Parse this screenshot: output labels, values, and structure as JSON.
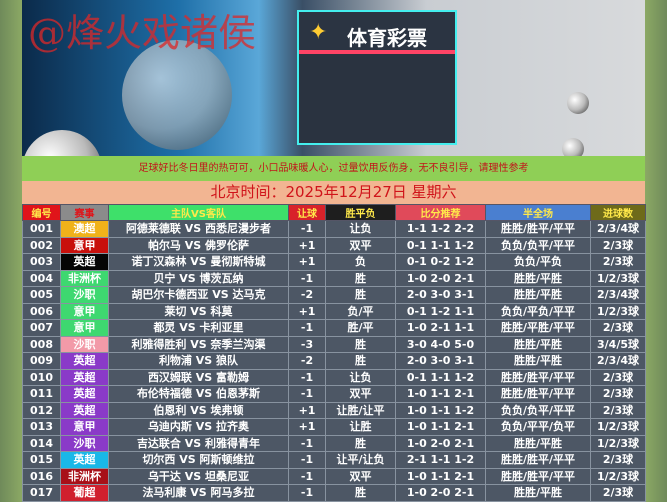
{
  "banner": {
    "watermark": "@烽火戏诸侯",
    "store_sign": "体育彩票"
  },
  "notice": "足球好比冬日里的热可可，小口品味暖人心，过量饮用反伤身，无不良引导，请理性参考",
  "date": "北京时间：2025年12月27日  星期六",
  "headers": [
    {
      "label": "编号",
      "bg": "#e0141a",
      "color": "#ffe94a"
    },
    {
      "label": "赛事",
      "bg": "#8b8b8b",
      "color": "#e0141a"
    },
    {
      "label": "主队VS客队",
      "bg": "#3ee06a",
      "color": "#ffe94a"
    },
    {
      "label": "让球",
      "bg": "#d8222a",
      "color": "#ffe94a"
    },
    {
      "label": "胜平负",
      "bg": "#1e1e1e",
      "color": "#ffe94a"
    },
    {
      "label": "比分推荐",
      "bg": "#e04a5a",
      "color": "#ffe94a"
    },
    {
      "label": "半全场",
      "bg": "#4a7fd0",
      "color": "#ffe94a"
    },
    {
      "label": "进球数",
      "bg": "#6e6a1a",
      "color": "#ffe94a"
    }
  ],
  "rows": [
    {
      "no": "001",
      "league": "澳超",
      "league_bg": "#f0b21a",
      "match": "阿德莱德联 VS 西悉尼漫步者",
      "handicap": "-1",
      "result": "让负",
      "scores": "1-1 1-2 2-2",
      "half_full": "胜胜/胜平/平平",
      "goals": "2/3/4球"
    },
    {
      "no": "002",
      "league": "意甲",
      "league_bg": "#c8100c",
      "match": "帕尔马 VS 佛罗伦萨",
      "handicap": "+1",
      "result": "双平",
      "scores": "0-1 1-1 1-2",
      "half_full": "负负/负平/平平",
      "goals": "2/3球"
    },
    {
      "no": "003",
      "league": "英超",
      "league_bg": "#050505",
      "match": "诺丁汉森林 VS 曼彻斯特城",
      "handicap": "+1",
      "result": "负",
      "scores": "0-1 0-2 1-2",
      "half_full": "负负/平负",
      "goals": "2/3球"
    },
    {
      "no": "004",
      "league": "非洲杯",
      "league_bg": "#3ed870",
      "match": "贝宁 VS 博茨瓦纳",
      "handicap": "-1",
      "result": "胜",
      "scores": "1-0 2-0 2-1",
      "half_full": "胜胜/平胜",
      "goals": "1/2/3球"
    },
    {
      "no": "005",
      "league": "沙职",
      "league_bg": "#3ed870",
      "match": "胡巴尔卡德西亚 VS 达马克",
      "handicap": "-2",
      "result": "胜",
      "scores": "2-0 3-0 3-1",
      "half_full": "胜胜/平胜",
      "goals": "2/3/4球"
    },
    {
      "no": "006",
      "league": "意甲",
      "league_bg": "#3ed870",
      "match": "莱切 VS 科莫",
      "handicap": "+1",
      "result": "负/平",
      "scores": "0-1 1-2 1-1",
      "half_full": "负负/平负/平平",
      "goals": "1/2/3球"
    },
    {
      "no": "007",
      "league": "意甲",
      "league_bg": "#3ed870",
      "match": "都灵 VS 卡利亚里",
      "handicap": "-1",
      "result": "胜/平",
      "scores": "1-0 2-1 1-1",
      "half_full": "胜胜/平胜/平平",
      "goals": "2/3球"
    },
    {
      "no": "008",
      "league": "沙职",
      "league_bg": "#f29aa8",
      "match": "利雅得胜利 VS 奈季兰沟渠",
      "handicap": "-3",
      "result": "胜",
      "scores": "3-0 4-0 5-0",
      "half_full": "胜胜/平胜",
      "goals": "3/4/5球"
    },
    {
      "no": "009",
      "league": "英超",
      "league_bg": "#8a3ac8",
      "match": "利物浦 VS 狼队",
      "handicap": "-2",
      "result": "胜",
      "scores": "2-0 3-0 3-1",
      "half_full": "胜胜/平胜",
      "goals": "2/3/4球"
    },
    {
      "no": "010",
      "league": "英超",
      "league_bg": "#8a3ac8",
      "match": "西汉姆联 VS 富勒姆",
      "handicap": "-1",
      "result": "让负",
      "scores": "0-1 1-1 1-2",
      "half_full": "胜胜/胜平/平平",
      "goals": "2/3球"
    },
    {
      "no": "011",
      "league": "英超",
      "league_bg": "#8a3ac8",
      "match": "布伦特福德 VS 伯恩茅斯",
      "handicap": "-1",
      "result": "双平",
      "scores": "1-0 1-1 2-1",
      "half_full": "胜胜/胜平/平平",
      "goals": "2/3球"
    },
    {
      "no": "012",
      "league": "英超",
      "league_bg": "#8a3ac8",
      "match": "伯恩利 VS 埃弗顿",
      "handicap": "+1",
      "result": "让胜/让平",
      "scores": "1-0 1-1 1-2",
      "half_full": "负负/负平/平平",
      "goals": "2/3球"
    },
    {
      "no": "013",
      "league": "意甲",
      "league_bg": "#8a3ac8",
      "match": "乌迪内斯 VS 拉齐奥",
      "handicap": "+1",
      "result": "让胜",
      "scores": "1-0 1-1 2-1",
      "half_full": "负负/平平/负平",
      "goals": "1/2/3球"
    },
    {
      "no": "014",
      "league": "沙职",
      "league_bg": "#8a3ac8",
      "match": "吉达联合 VS 利雅得青年",
      "handicap": "-1",
      "result": "胜",
      "scores": "1-0 2-0 2-1",
      "half_full": "胜胜/平胜",
      "goals": "1/2/3球"
    },
    {
      "no": "015",
      "league": "英超",
      "league_bg": "#1ab8e8",
      "match": "切尔西 VS 阿斯顿维拉",
      "handicap": "-1",
      "result": "让平/让负",
      "scores": "2-1 1-1 1-2",
      "half_full": "胜胜/胜平/平平",
      "goals": "2/3球"
    },
    {
      "no": "016",
      "league": "非洲杯",
      "league_bg": "#a81018",
      "match": "乌干达 VS 坦桑尼亚",
      "handicap": "-1",
      "result": "双平",
      "scores": "1-0 1-1 2-1",
      "half_full": "胜胜/胜平/平平",
      "goals": "1/2/3球"
    },
    {
      "no": "017",
      "league": "葡超",
      "league_bg": "#d0202e",
      "match": "法马利康 VS 阿马多拉",
      "handicap": "-1",
      "result": "胜",
      "scores": "1-0 2-0 2-1",
      "half_full": "胜胜/平胜",
      "goals": "2/3球"
    }
  ]
}
